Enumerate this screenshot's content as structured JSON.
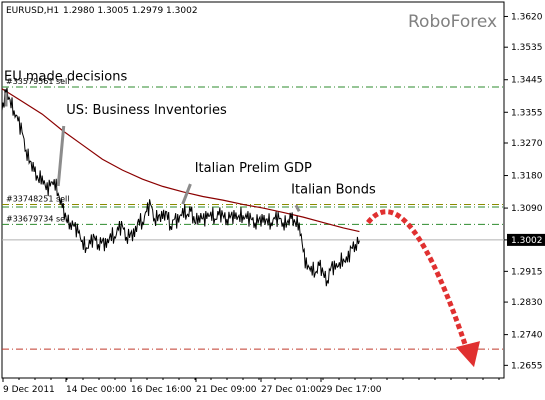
{
  "header": {
    "symbol": "EURUSD,H1",
    "ohlc": "1.2980 1.3005 1.2979 1.3002"
  },
  "brand": "RoboForex",
  "colors": {
    "price": "#000000",
    "ma": "#8b0000",
    "level_green": "#2e8b2e",
    "level_olive": "#8b8b00",
    "level_red": "#c0392b",
    "arrow": "#e03030",
    "current_badge": "#000000"
  },
  "chart_data": {
    "type": "line",
    "title": "",
    "xlabel": "",
    "ylabel": "",
    "ylim": [
      1.262,
      1.366
    ],
    "y_ticks": [
      "1.3620",
      "1.3535",
      "1.3445",
      "1.3355",
      "1.3270",
      "1.3180",
      "1.3090",
      "1.3002",
      "1.2915",
      "1.2830",
      "1.2740",
      "1.2655"
    ],
    "x_ticks": [
      "9 Dec 2011",
      "14 Dec 00:00",
      "16 Dec 16:00",
      "21 Dec 09:00",
      "27 Dec 01:00",
      "29 Dec 17:00"
    ],
    "current_price": "1.3002",
    "price_series": {
      "x": [
        0,
        2,
        4,
        6,
        8,
        10,
        12,
        14,
        16,
        18,
        20,
        22,
        24,
        26,
        28,
        30,
        32,
        34,
        36,
        38,
        40,
        42,
        44,
        46,
        48,
        50,
        52,
        54,
        56,
        58,
        60,
        62,
        64,
        66,
        68,
        70,
        72,
        74,
        76,
        78,
        80,
        82,
        84,
        86,
        88,
        90,
        92,
        94,
        96,
        98,
        100,
        102,
        104,
        106,
        108,
        110,
        112,
        114,
        116,
        118,
        120,
        122,
        124,
        126,
        128,
        130,
        132,
        134,
        136,
        138,
        140,
        142,
        144,
        146,
        148,
        150,
        152,
        154,
        156,
        158,
        160,
        162,
        164,
        166,
        168,
        170,
        172,
        174,
        176,
        178
      ],
      "y": [
        1.336,
        1.341,
        1.339,
        1.336,
        1.333,
        1.33,
        1.325,
        1.322,
        1.319,
        1.317,
        1.318,
        1.314,
        1.315,
        1.317,
        1.313,
        1.309,
        1.306,
        1.305,
        1.304,
        1.302,
        1.3,
        1.298,
        1.299,
        1.301,
        1.299,
        1.3,
        1.298,
        1.302,
        1.301,
        1.303,
        1.304,
        1.301,
        1.302,
        1.301,
        1.306,
        1.305,
        1.308,
        1.31,
        1.306,
        1.307,
        1.306,
        1.308,
        1.304,
        1.306,
        1.305,
        1.309,
        1.307,
        1.308,
        1.305,
        1.307,
        1.306,
        1.306,
        1.308,
        1.306,
        1.307,
        1.307,
        1.306,
        1.307,
        1.306,
        1.307,
        1.307,
        1.306,
        1.306,
        1.305,
        1.306,
        1.305,
        1.306,
        1.305,
        1.306,
        1.306,
        1.305,
        1.305,
        1.306,
        1.305,
        1.305,
        1.297,
        1.292,
        1.293,
        1.291,
        1.293,
        1.291,
        1.289,
        1.293,
        1.292,
        1.294,
        1.295,
        1.294,
        1.298,
        1.299,
        1.3
      ]
    },
    "series": [
      {
        "name": "",
        "type": "moving-average",
        "x": [
          0,
          10,
          20,
          30,
          40,
          50,
          60,
          70,
          80,
          90,
          100,
          110,
          120,
          130,
          140,
          150,
          160,
          170,
          178
        ],
        "y": [
          1.342,
          1.3385,
          1.335,
          1.3305,
          1.3265,
          1.3225,
          1.3195,
          1.317,
          1.315,
          1.3135,
          1.3122,
          1.3112,
          1.31,
          1.309,
          1.3078,
          1.3065,
          1.305,
          1.3035,
          1.3025
        ]
      }
    ],
    "levels": [
      {
        "label": "#33579561 sell",
        "value": 1.3425,
        "color": "#2e8b2e"
      },
      {
        "label": "#33748251 sell",
        "value": 1.31,
        "color": "#8b8b00"
      },
      {
        "label": "",
        "value": 1.3093,
        "color": "#2e8b2e"
      },
      {
        "label": "#33679734 sell",
        "value": 1.3045,
        "color": "#2e8b2e"
      },
      {
        "label": "",
        "value": 1.27,
        "color": "#c0392b"
      }
    ],
    "annotations": [
      {
        "text": "EU made decisions",
        "x": 2,
        "y": 1.336
      },
      {
        "text": "US: Business Inventories",
        "x": 28,
        "y": 1.314
      },
      {
        "text": "Italian Prelim GDP",
        "x": 90,
        "y": 1.309
      },
      {
        "text": "Italian Bonds",
        "x": 148,
        "y": 1.307
      }
    ],
    "forecast_arrow": {
      "from": [
        1.305,
        1.3043
      ],
      "to": [
        1.304,
        1.27
      ]
    }
  }
}
